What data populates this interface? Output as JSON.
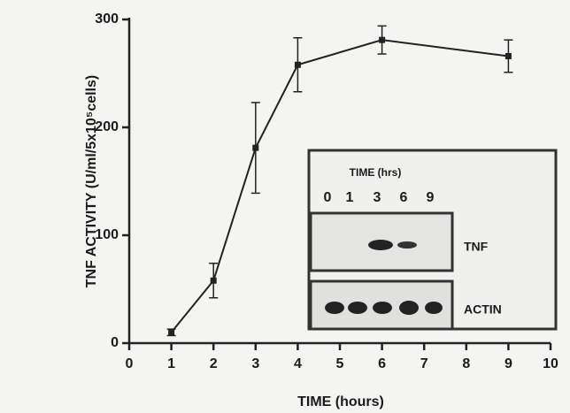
{
  "chart_data": {
    "type": "line",
    "xlabel": "TIME (hours)",
    "ylabel": "TNF ACTIVITY (U/ml/5x10⁵cells)",
    "series": [
      {
        "color": "#222222",
        "x": [
          1,
          2,
          3,
          4,
          6,
          9
        ],
        "values": [
          10,
          58,
          181,
          258,
          281,
          266
        ],
        "errors": [
          3,
          16,
          42,
          25,
          13,
          15
        ]
      }
    ],
    "xlim": [
      0,
      10
    ],
    "xticks": [
      0,
      1,
      2,
      3,
      4,
      5,
      6,
      7,
      8,
      9,
      10
    ],
    "ylim": [
      0,
      300
    ],
    "yticks": [
      0,
      100,
      200,
      300
    ],
    "inset": {
      "title": "TIME (hrs)",
      "lanes": [
        "0",
        "1",
        "3",
        "6",
        "9"
      ],
      "rows": [
        "TNF",
        "ACTIN"
      ]
    }
  }
}
